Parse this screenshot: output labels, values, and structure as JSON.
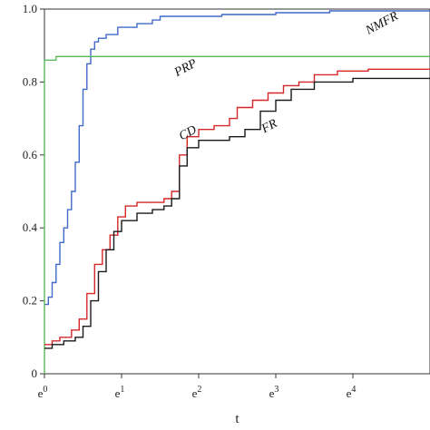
{
  "chart_data": {
    "type": "line",
    "xlabel": "t",
    "ylabel": "",
    "xscale": "log (base e)",
    "xlim": [
      0,
      5
    ],
    "ylim": [
      0,
      1.0
    ],
    "x_tick_labels": [
      "e",
      "e",
      "e",
      "e",
      "e"
    ],
    "x_tick_exponents": [
      "0",
      "1",
      "2",
      "3",
      "4"
    ],
    "x_tick_positions": [
      0,
      1,
      2,
      3,
      4
    ],
    "y_ticks": [
      0,
      0.2,
      0.4,
      0.6,
      0.8,
      1.0
    ],
    "y_tick_labels": [
      "0",
      "0.2",
      "0.4",
      "0.6",
      "0.8",
      "1.0"
    ],
    "grid": false,
    "legend": "none (inline annotations)",
    "series": [
      {
        "name": "NMFR",
        "color": "#4169c8",
        "points": [
          [
            0,
            0.19
          ],
          [
            0.05,
            0.21
          ],
          [
            0.1,
            0.25
          ],
          [
            0.15,
            0.3
          ],
          [
            0.2,
            0.36
          ],
          [
            0.25,
            0.4
          ],
          [
            0.3,
            0.45
          ],
          [
            0.35,
            0.5
          ],
          [
            0.4,
            0.58
          ],
          [
            0.45,
            0.68
          ],
          [
            0.5,
            0.78
          ],
          [
            0.55,
            0.85
          ],
          [
            0.6,
            0.89
          ],
          [
            0.65,
            0.91
          ],
          [
            0.7,
            0.92
          ],
          [
            0.8,
            0.93
          ],
          [
            0.95,
            0.95
          ],
          [
            1.2,
            0.96
          ],
          [
            1.4,
            0.97
          ],
          [
            1.5,
            0.98
          ],
          [
            2.0,
            0.98
          ],
          [
            2.3,
            0.985
          ],
          [
            3.0,
            0.99
          ],
          [
            3.7,
            0.995
          ],
          [
            5.0,
            0.995
          ]
        ]
      },
      {
        "name": "PRP",
        "color": "#5cb85c",
        "points": [
          [
            0,
            0.0
          ],
          [
            0,
            0.86
          ],
          [
            0.15,
            0.86
          ],
          [
            0.15,
            0.87
          ],
          [
            5.0,
            0.87
          ]
        ]
      },
      {
        "name": "CD",
        "color": "#d62728",
        "points": [
          [
            0,
            0.08
          ],
          [
            0.1,
            0.09
          ],
          [
            0.2,
            0.1
          ],
          [
            0.35,
            0.12
          ],
          [
            0.45,
            0.15
          ],
          [
            0.55,
            0.22
          ],
          [
            0.65,
            0.3
          ],
          [
            0.75,
            0.34
          ],
          [
            0.85,
            0.38
          ],
          [
            0.95,
            0.43
          ],
          [
            1.05,
            0.46
          ],
          [
            1.2,
            0.47
          ],
          [
            1.4,
            0.47
          ],
          [
            1.55,
            0.48
          ],
          [
            1.65,
            0.5
          ],
          [
            1.75,
            0.6
          ],
          [
            1.85,
            0.65
          ],
          [
            2.0,
            0.67
          ],
          [
            2.2,
            0.68
          ],
          [
            2.4,
            0.7
          ],
          [
            2.5,
            0.73
          ],
          [
            2.7,
            0.75
          ],
          [
            2.9,
            0.77
          ],
          [
            3.1,
            0.79
          ],
          [
            3.3,
            0.8
          ],
          [
            3.5,
            0.82
          ],
          [
            3.8,
            0.83
          ],
          [
            4.2,
            0.835
          ],
          [
            5.0,
            0.835
          ]
        ]
      },
      {
        "name": "FR",
        "color": "#1a1a1a",
        "points": [
          [
            0,
            0.07
          ],
          [
            0.1,
            0.08
          ],
          [
            0.25,
            0.09
          ],
          [
            0.4,
            0.1
          ],
          [
            0.5,
            0.13
          ],
          [
            0.6,
            0.2
          ],
          [
            0.7,
            0.28
          ],
          [
            0.8,
            0.34
          ],
          [
            0.9,
            0.39
          ],
          [
            1.0,
            0.42
          ],
          [
            1.2,
            0.44
          ],
          [
            1.4,
            0.45
          ],
          [
            1.55,
            0.46
          ],
          [
            1.65,
            0.48
          ],
          [
            1.75,
            0.57
          ],
          [
            1.85,
            0.62
          ],
          [
            2.0,
            0.64
          ],
          [
            2.2,
            0.64
          ],
          [
            2.4,
            0.65
          ],
          [
            2.6,
            0.67
          ],
          [
            2.8,
            0.72
          ],
          [
            3.0,
            0.75
          ],
          [
            3.2,
            0.78
          ],
          [
            3.5,
            0.8
          ],
          [
            4.0,
            0.81
          ],
          [
            5.0,
            0.81
          ]
        ]
      }
    ],
    "annotations": [
      {
        "text": "NMFR",
        "x": 4.2,
        "y": 0.93
      },
      {
        "text": "PRP",
        "x": 1.72,
        "y": 0.815
      },
      {
        "text": "CD",
        "x": 1.78,
        "y": 0.64
      },
      {
        "text": "FR",
        "x": 2.85,
        "y": 0.66
      }
    ]
  }
}
